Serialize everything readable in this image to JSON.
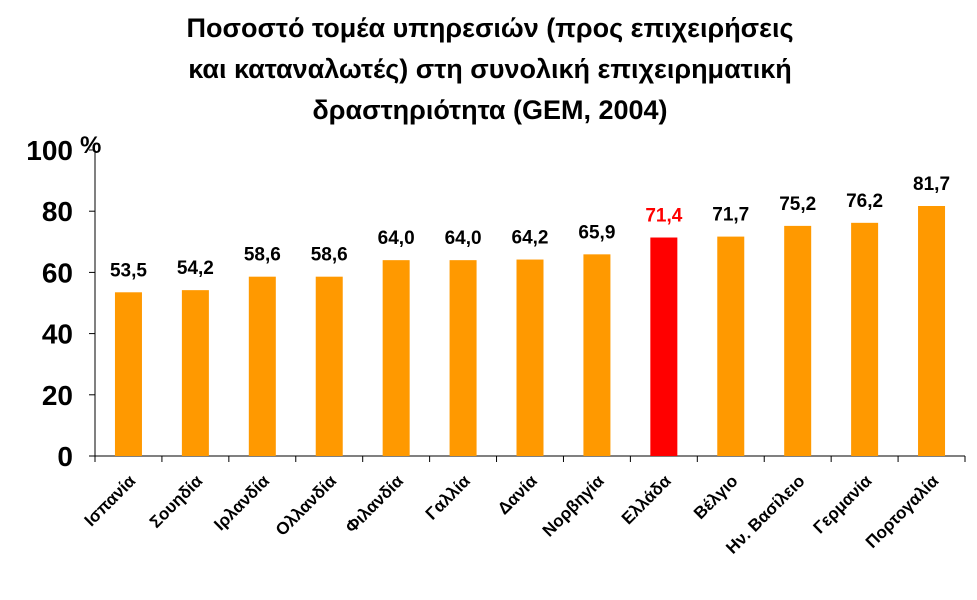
{
  "chart_data": {
    "type": "bar",
    "title_lines": [
      "Ποσοστό τομέα υπηρεσιών (προς επιχειρήσεις",
      "και καταναλωτές) στη συνολική επιχειρηματική",
      "δραστηριότητα (GEM, 2004)"
    ],
    "unit_label": "%",
    "categories": [
      "Ισπανία",
      "Σουηδία",
      "Ιρλανδία",
      "Ολλανδία",
      "Φιλανδία",
      "Γαλλία",
      "Δανία",
      "Νορβηγία",
      "Ελλάδα",
      "Βέλγιο",
      "Ην. Βασίλειο",
      "Γερμανία",
      "Πορτογαλία"
    ],
    "values": [
      53.5,
      54.2,
      58.6,
      58.6,
      64.0,
      64.0,
      64.2,
      65.9,
      71.4,
      71.7,
      75.2,
      76.2,
      81.7
    ],
    "value_labels": [
      "53,5",
      "54,2",
      "58,6",
      "58,6",
      "64,0",
      "64,0",
      "64,2",
      "65,9",
      "71,4",
      "71,7",
      "75,2",
      "76,2",
      "81,7"
    ],
    "ylim": [
      0,
      100
    ],
    "yticks": [
      0,
      20,
      40,
      60,
      80,
      100
    ],
    "ytick_labels": [
      "0",
      "20",
      "40",
      "60",
      "80",
      "100"
    ],
    "grid": false,
    "legend": "none",
    "highlight_category": "Ελλάδα",
    "colors": {
      "bar": "#FF9900",
      "highlight": "#FF0000",
      "highlight_label": "#FF0000",
      "axis": "#000000"
    }
  }
}
